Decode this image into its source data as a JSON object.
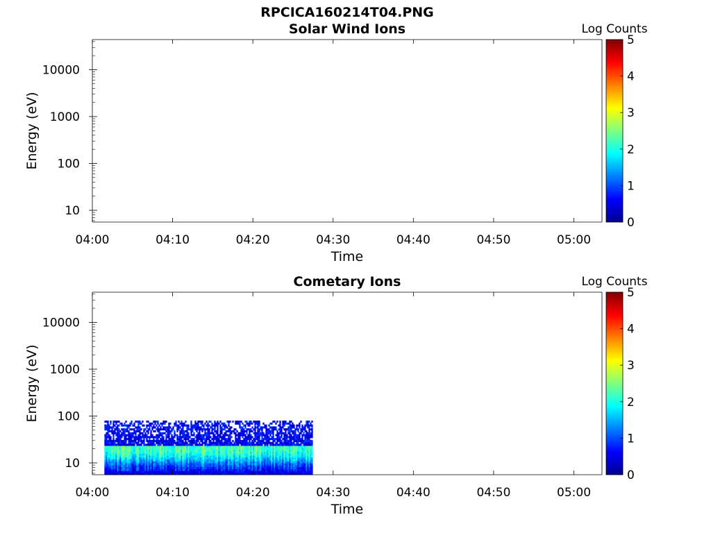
{
  "figure_title": "RPCICA160214T04.PNG",
  "chart_data": [
    {
      "type": "heatmap",
      "title": "Solar Wind Ions",
      "xlabel": "Time",
      "ylabel": "Energy (eV)",
      "x_ticks": [
        "04:00",
        "04:10",
        "04:20",
        "04:30",
        "04:40",
        "04:50",
        "05:00"
      ],
      "y_ticks": [
        "10",
        "100",
        "1000",
        "10000"
      ],
      "y_scale": "log",
      "ylim": [
        5.6,
        44000
      ],
      "xlim_minutes_after_0400": [
        0,
        63.5
      ],
      "colorbar": {
        "title": "Log Counts",
        "ticks": [
          "0",
          "1",
          "2",
          "3",
          "4",
          "5"
        ],
        "range": [
          0,
          5
        ],
        "colormap": "jet"
      },
      "data_present": false,
      "coverage": null
    },
    {
      "type": "heatmap",
      "title": "Cometary Ions",
      "xlabel": "Time",
      "ylabel": "Energy (eV)",
      "x_ticks": [
        "04:00",
        "04:10",
        "04:20",
        "04:30",
        "04:40",
        "04:50",
        "05:00"
      ],
      "y_ticks": [
        "10",
        "100",
        "1000",
        "10000"
      ],
      "y_scale": "log",
      "ylim": [
        5.6,
        44000
      ],
      "xlim_minutes_after_0400": [
        0,
        63.5
      ],
      "colorbar": {
        "title": "Log Counts",
        "ticks": [
          "0",
          "1",
          "2",
          "3",
          "4",
          "5"
        ],
        "range": [
          0,
          5
        ],
        "colormap": "jet"
      },
      "data_present": true,
      "coverage": {
        "time_start_minutes": 1.5,
        "time_end_minutes": 27.4,
        "energy_min_ev": 5.6,
        "energy_max_ev": 80,
        "peak_energy_ev": 20,
        "peak_log_counts": 2.2,
        "typical_log_counts": 1.3
      }
    }
  ]
}
